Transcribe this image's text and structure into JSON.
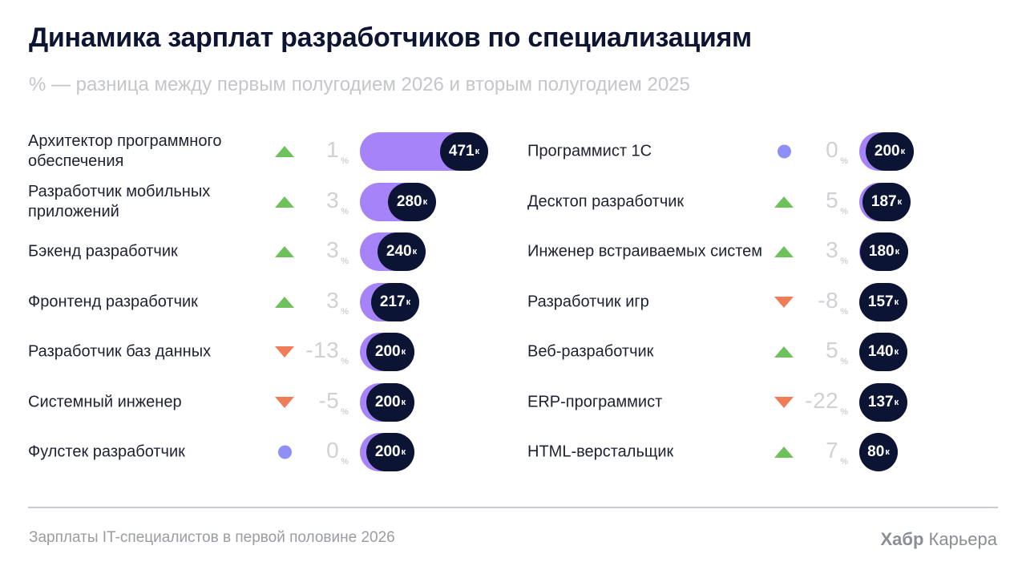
{
  "title": "Динамика зарплат разработчиков по специализациям",
  "subtitle": "% — разница между первым полугодием 2026 и вторым полугодием 2025",
  "footer": {
    "source": "Зарплаты IT-специалистов в первой половине 2026",
    "brand_bold": "Хабр",
    "brand_rest": " Карьера"
  },
  "colors": {
    "bar": "#a683f9",
    "pill": "#0c1433",
    "up": "#6ec15b",
    "down": "#ef7d57",
    "neutral": "#8e8ff7"
  },
  "chart_data": {
    "type": "bar",
    "title": "Динамика зарплат разработчиков по специализациям",
    "subtitle": "% — разница между первым полугодием 2026 и вторым полугодием 2025",
    "value_unit": "к",
    "change_unit": "%",
    "columns": [
      {
        "rows": [
          {
            "label": "Архитектор программного обеспечения",
            "change": "1",
            "trend": "up",
            "salary": 471
          },
          {
            "label": "Разработчик мобильных приложений",
            "change": "3",
            "trend": "up",
            "salary": 280
          },
          {
            "label": "Бэкенд разработчик",
            "change": "3",
            "trend": "up",
            "salary": 240
          },
          {
            "label": "Фронтенд разработчик",
            "change": "3",
            "trend": "up",
            "salary": 217
          },
          {
            "label": "Разработчик баз данных",
            "change": "-13",
            "trend": "down",
            "salary": 200
          },
          {
            "label": "Системный инженер",
            "change": "-5",
            "trend": "down",
            "salary": 200
          },
          {
            "label": "Фулстек разработчик",
            "change": "0",
            "trend": "neutral",
            "salary": 200
          }
        ]
      },
      {
        "rows": [
          {
            "label": "Программист 1С",
            "change": "0",
            "trend": "neutral",
            "salary": 200
          },
          {
            "label": "Десктоп разработчик",
            "change": "5",
            "trend": "up",
            "salary": 187
          },
          {
            "label": "Инженер встраиваемых систем",
            "change": "3",
            "trend": "up",
            "salary": 180
          },
          {
            "label": "Разработчик игр",
            "change": "-8",
            "trend": "down",
            "salary": 157
          },
          {
            "label": "Веб-разработчик",
            "change": "5",
            "trend": "up",
            "salary": 140
          },
          {
            "label": "ERP-программист",
            "change": "-22",
            "trend": "down",
            "salary": 137
          },
          {
            "label": "HTML-верстальщик",
            "change": "7",
            "trend": "up",
            "salary": 80
          }
        ]
      }
    ]
  }
}
